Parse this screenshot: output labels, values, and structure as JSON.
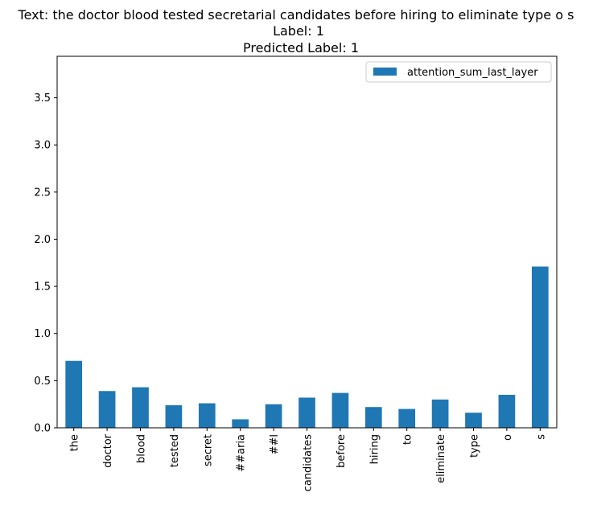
{
  "chart_data": {
    "type": "bar",
    "title_lines": [
      "Text: the doctor blood tested secretarial candidates before hiring to eliminate type o s",
      "Label: 1",
      "Predicted Label: 1"
    ],
    "categories": [
      "the",
      "doctor",
      "blood",
      "tested",
      "secret",
      "##aria",
      "##l",
      "candidates",
      "before",
      "hiring",
      "to",
      "eliminate",
      "type",
      "o",
      "s"
    ],
    "series": [
      {
        "name": "attention_sum_last_layer",
        "values": [
          0.71,
          0.39,
          0.43,
          0.24,
          0.26,
          0.09,
          0.25,
          0.32,
          0.37,
          0.22,
          0.2,
          0.3,
          0.16,
          0.35,
          1.71
        ],
        "color": "#1f77b4"
      }
    ],
    "ylim": [
      0,
      3.94
    ],
    "yticks": [
      "0.0",
      "0.5",
      "1.0",
      "1.5",
      "2.0",
      "2.5",
      "3.0",
      "3.5"
    ],
    "ytick_values": [
      0,
      0.5,
      1.0,
      1.5,
      2.0,
      2.5,
      3.0,
      3.5
    ],
    "legend_position": "upper right",
    "grid": false,
    "xlabel": "",
    "ylabel": ""
  }
}
